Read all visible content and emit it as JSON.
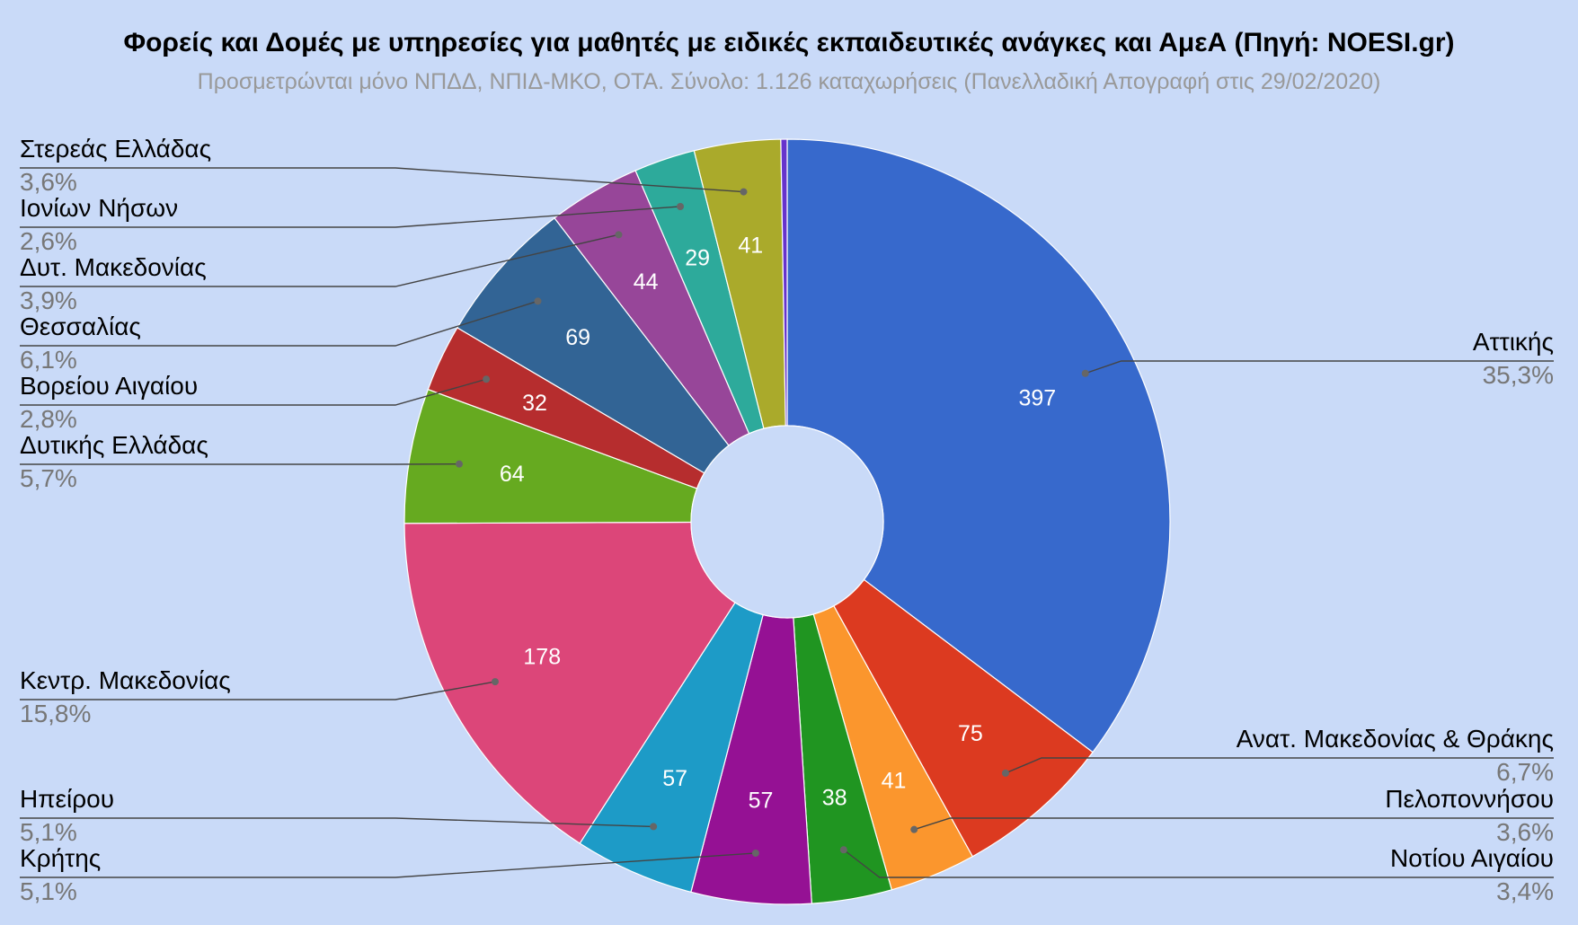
{
  "chart_data": {
    "type": "pie",
    "donut": true,
    "title": "Φορείς και Δομές με υπηρεσίες για μαθητές με ειδικές εκπαιδευτικές ανάγκες και ΑμεΑ (Πηγή: NOESI.gr)",
    "subtitle": "Προσμετρώνται μόνο ΝΠΔΔ, ΝΠΙΔ-ΜΚΟ, ΟΤΑ. Σύνολο: 1.126 καταχωρήσεις (Πανελλαδική Απογραφή στις 29/02/2020)",
    "slices": [
      {
        "name": "Αττικής",
        "value": 397,
        "percent": "35,3%",
        "color": "#3769cc",
        "side": "right"
      },
      {
        "name": "Ανατ. Μακεδονίας & Θράκης",
        "value": 75,
        "percent": "6,7%",
        "color": "#dc3a20",
        "side": "right"
      },
      {
        "name": "Πελοποννήσου",
        "value": 41,
        "percent": "3,6%",
        "color": "#fb962d",
        "side": "right"
      },
      {
        "name": "Νοτίου Αιγαίου",
        "value": 38,
        "percent": "3,4%",
        "color": "#209521",
        "side": "right"
      },
      {
        "name": "Κρήτης",
        "value": 57,
        "percent": "5,1%",
        "color": "#951194",
        "side": "left"
      },
      {
        "name": "Ηπείρου",
        "value": 57,
        "percent": "5,1%",
        "color": "#1d9bc7",
        "side": "left"
      },
      {
        "name": "Κεντρ. Μακεδονίας",
        "value": 178,
        "percent": "15,8%",
        "color": "#dc4679",
        "side": "left"
      },
      {
        "name": "Δυτικής Ελλάδας",
        "value": 64,
        "percent": "5,7%",
        "color": "#66aa20",
        "side": "left"
      },
      {
        "name": "Βορείου Αιγαίου",
        "value": 32,
        "percent": "2,8%",
        "color": "#b62d2e",
        "side": "left"
      },
      {
        "name": "Θεσσαλίας",
        "value": 69,
        "percent": "6,1%",
        "color": "#326495",
        "side": "left"
      },
      {
        "name": "Δυτ. Μακεδονίας",
        "value": 44,
        "percent": "3,9%",
        "color": "#974699",
        "side": "left"
      },
      {
        "name": "Ιονίων Νήσων",
        "value": 29,
        "percent": "2,6%",
        "color": "#2daa9b",
        "side": "left"
      },
      {
        "name": "Στερεάς Ελλάδας",
        "value": 41,
        "percent": "3,6%",
        "color": "#aaaa2b",
        "side": "left"
      },
      {
        "name": "",
        "value": 3,
        "percent": "",
        "color": "#6633cc",
        "side": "none"
      }
    ]
  }
}
